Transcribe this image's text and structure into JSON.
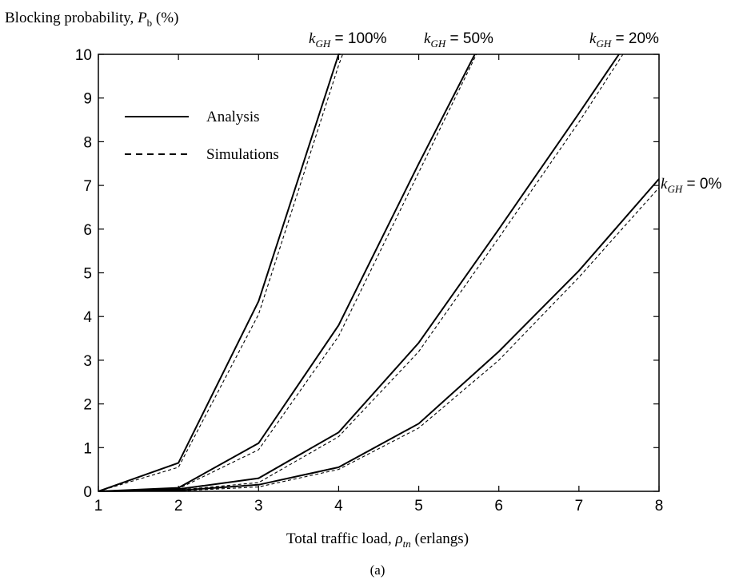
{
  "chart_data": {
    "type": "line",
    "ylabel_text": "Blocking probability, ",
    "ylabel_symbol": "P",
    "ylabel_sub": "b",
    "ylabel_unit": " (%)",
    "xlabel_text": "Total traffic load, ",
    "xlabel_symbol": "ρ",
    "xlabel_sub": "tn",
    "xlabel_unit": " (erlangs)",
    "caption": "(a)",
    "xlim": [
      1,
      8
    ],
    "ylim": [
      0,
      10
    ],
    "xticks": [
      1,
      2,
      3,
      4,
      5,
      6,
      7,
      8
    ],
    "yticks": [
      0,
      1,
      2,
      3,
      4,
      5,
      6,
      7,
      8,
      9,
      10
    ],
    "grid": false,
    "legend": {
      "placement": "top-left",
      "entries": [
        {
          "label": "Analysis",
          "style": "solid"
        },
        {
          "label": "Simulations",
          "style": "dashed"
        }
      ]
    },
    "series": [
      {
        "annotation": {
          "symbol": "k",
          "sub": "GH",
          "text": " = 100%"
        },
        "analysis": {
          "x": [
            1,
            2,
            3,
            4,
            4.02
          ],
          "y": [
            0.0,
            0.65,
            4.35,
            10.0,
            10.0
          ]
        },
        "simulations": {
          "x": [
            1,
            2,
            3,
            4,
            4.05
          ],
          "y": [
            0.0,
            0.55,
            4.05,
            9.75,
            10.0
          ]
        }
      },
      {
        "annotation": {
          "symbol": "k",
          "sub": "GH",
          "text": " = 50%"
        },
        "analysis": {
          "x": [
            1,
            2,
            3,
            4,
            5,
            5.7
          ],
          "y": [
            0.0,
            0.08,
            1.1,
            3.8,
            7.5,
            10.0
          ]
        },
        "simulations": {
          "x": [
            1,
            2,
            3,
            4,
            5,
            5.72
          ],
          "y": [
            0.0,
            0.06,
            0.95,
            3.55,
            7.3,
            10.0
          ]
        }
      },
      {
        "annotation": {
          "symbol": "k",
          "sub": "GH",
          "text": " = 20%"
        },
        "analysis": {
          "x": [
            1,
            2,
            3,
            4,
            5,
            6,
            7,
            7.5
          ],
          "y": [
            0.0,
            0.05,
            0.3,
            1.35,
            3.4,
            6.0,
            8.65,
            10.0
          ]
        },
        "simulations": {
          "x": [
            1,
            2,
            3,
            4,
            5,
            6,
            7,
            7.55
          ],
          "y": [
            0.0,
            0.03,
            0.2,
            1.25,
            3.2,
            5.8,
            8.45,
            10.0
          ]
        }
      },
      {
        "annotation": {
          "symbol": "k",
          "sub": "GH",
          "text": " = 0%"
        },
        "analysis": {
          "x": [
            1,
            2,
            3,
            4,
            5,
            6,
            7,
            8
          ],
          "y": [
            0.0,
            0.02,
            0.15,
            0.55,
            1.55,
            3.2,
            5.05,
            7.15
          ]
        },
        "simulations": {
          "x": [
            1,
            2,
            3,
            4,
            5,
            6,
            7,
            8
          ],
          "y": [
            0.0,
            0.01,
            0.1,
            0.5,
            1.45,
            3.0,
            4.9,
            6.95
          ]
        }
      }
    ]
  }
}
